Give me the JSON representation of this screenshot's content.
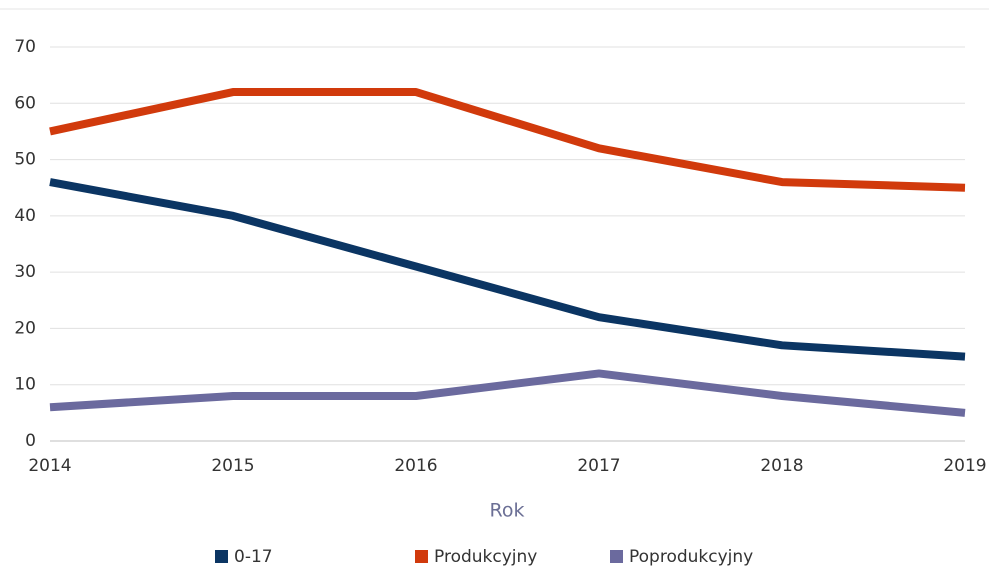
{
  "chart_data": {
    "type": "line",
    "x": [
      2014,
      2015,
      2016,
      2017,
      2018,
      2019
    ],
    "xlim": [
      2014,
      2019
    ],
    "xticks": [
      2014,
      2015,
      2016,
      2017,
      2018,
      2019
    ],
    "ylim": [
      0,
      70
    ],
    "yticks": [
      0,
      10,
      20,
      30,
      40,
      50,
      60,
      70
    ],
    "xlabel": "Rok",
    "grid": true,
    "legend": "bottom",
    "series": [
      {
        "name": "0-17",
        "color": "#0b3563",
        "values": [
          46,
          40,
          31,
          22,
          17,
          15
        ]
      },
      {
        "name": "Produkcyjny",
        "color": "#d13a0c",
        "values": [
          55,
          62,
          62,
          52,
          46,
          45
        ]
      },
      {
        "name": "Poprodukcyjny",
        "color": "#6b6a9e",
        "values": [
          6,
          8,
          8,
          12,
          8,
          5
        ]
      }
    ]
  }
}
